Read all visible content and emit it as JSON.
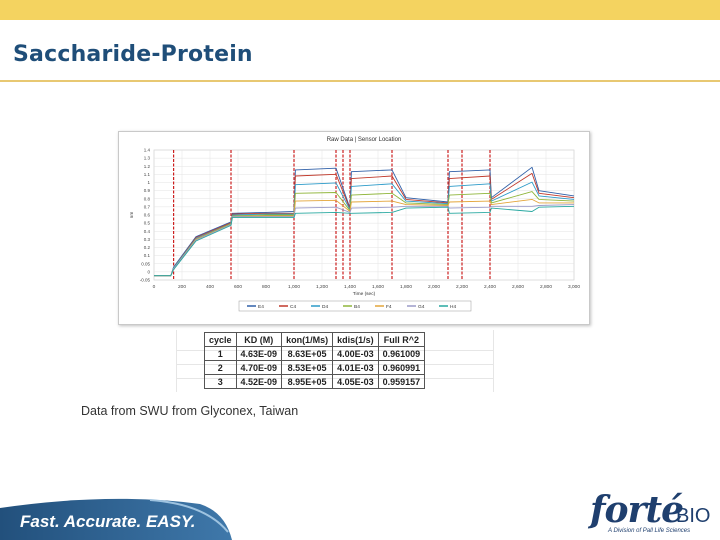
{
  "slide": {
    "title": "Saccharide-Protein",
    "credit": "Data from SWU from Glyconex, Taiwan",
    "tagline": "Fast. Accurate. EASY.",
    "logo": {
      "word": "forté",
      "suffix": "BIO",
      "subtitle": "A Division of Pall Life Sciences"
    },
    "colors": {
      "title": "#1f4e79",
      "top_bar": "#f4d360",
      "footer_band": "#2e5f8a",
      "logo": "#1f3f6e"
    }
  },
  "chart_data": {
    "type": "line",
    "title": "Raw Data | Sensor Location",
    "xlabel": "Time (sec)",
    "ylabel": "nm",
    "xlim": [
      0,
      3000
    ],
    "ylim": [
      -0.05,
      1.45
    ],
    "xticks": [
      "0",
      "200",
      "400",
      "600",
      "800",
      "1,000",
      "1,200",
      "1,400",
      "1,600",
      "1,800",
      "2,000",
      "2,200",
      "2,400",
      "2,600",
      "2,800",
      "3,000"
    ],
    "yticks": [
      "-0.05",
      "0",
      "0.05",
      "0.1",
      "0.2",
      "0.3",
      "0.4",
      "0.5",
      "0.6",
      "0.7",
      "0.8",
      "0.9",
      "1",
      "1.1",
      "1.2",
      "1.3",
      "1.4"
    ],
    "grid": true,
    "legend_position": "bottom",
    "legend": [
      "E4",
      "C4",
      "D4",
      "B4",
      "F4",
      "G4",
      "H4"
    ],
    "series_colors": [
      "#3060a8",
      "#c0392b",
      "#2c9ac8",
      "#8fb53a",
      "#e3a53a",
      "#9b9bc9",
      "#28a8a0"
    ],
    "step_markers": [
      140,
      550,
      1000,
      1300,
      1350,
      1400,
      1700,
      2100,
      2200,
      2400
    ],
    "series": [
      {
        "name": "E4",
        "x": [
          0,
          120,
          140,
          300,
          550,
          560,
          800,
          1000,
          1010,
          1300,
          1400,
          1410,
          1700,
          1800,
          2100,
          2110,
          2400,
          2410,
          2700,
          2750,
          3000
        ],
        "y": [
          0.0,
          0.0,
          0.1,
          0.45,
          0.62,
          0.72,
          0.73,
          0.74,
          1.22,
          1.24,
          0.78,
          1.2,
          1.22,
          0.9,
          0.85,
          1.2,
          1.22,
          0.9,
          1.25,
          0.98,
          0.92
        ]
      },
      {
        "name": "C4",
        "x": [
          0,
          120,
          140,
          300,
          550,
          560,
          800,
          1000,
          1010,
          1300,
          1400,
          1410,
          1700,
          1800,
          2100,
          2110,
          2400,
          2410,
          2700,
          2750,
          3000
        ],
        "y": [
          0.0,
          0.0,
          0.09,
          0.44,
          0.61,
          0.71,
          0.72,
          0.72,
          1.15,
          1.17,
          0.77,
          1.12,
          1.15,
          0.88,
          0.84,
          1.12,
          1.15,
          0.88,
          1.18,
          0.95,
          0.9
        ]
      },
      {
        "name": "D4",
        "x": [
          0,
          120,
          140,
          300,
          550,
          560,
          800,
          1000,
          1010,
          1300,
          1400,
          1410,
          1700,
          1800,
          2100,
          2110,
          2400,
          2410,
          2700,
          2750,
          3000
        ],
        "y": [
          0.0,
          0.0,
          0.09,
          0.43,
          0.6,
          0.7,
          0.71,
          0.71,
          1.05,
          1.07,
          0.76,
          1.03,
          1.06,
          0.86,
          0.83,
          1.03,
          1.06,
          0.86,
          1.08,
          0.92,
          0.88
        ]
      },
      {
        "name": "B4",
        "x": [
          0,
          120,
          140,
          300,
          550,
          560,
          800,
          1000,
          1010,
          1300,
          1400,
          1410,
          1700,
          1800,
          2100,
          2110,
          2400,
          2410,
          2700,
          2750,
          3000
        ],
        "y": [
          0.0,
          0.0,
          0.08,
          0.42,
          0.6,
          0.69,
          0.7,
          0.7,
          0.95,
          0.96,
          0.75,
          0.93,
          0.95,
          0.84,
          0.82,
          0.93,
          0.95,
          0.84,
          0.97,
          0.88,
          0.86
        ]
      },
      {
        "name": "F4",
        "x": [
          0,
          120,
          140,
          300,
          550,
          560,
          800,
          1000,
          1010,
          1300,
          1400,
          1410,
          1700,
          1800,
          2100,
          2110,
          2400,
          2410,
          2700,
          2750,
          3000
        ],
        "y": [
          0.0,
          0.0,
          0.08,
          0.42,
          0.59,
          0.68,
          0.69,
          0.69,
          0.86,
          0.87,
          0.74,
          0.85,
          0.86,
          0.82,
          0.81,
          0.85,
          0.86,
          0.82,
          0.88,
          0.84,
          0.84
        ]
      },
      {
        "name": "G4",
        "x": [
          0,
          120,
          140,
          300,
          550,
          560,
          800,
          1000,
          1010,
          1300,
          1400,
          1410,
          1700,
          1800,
          2100,
          2110,
          2400,
          2410,
          2700,
          2750,
          3000
        ],
        "y": [
          0.0,
          0.0,
          0.08,
          0.41,
          0.59,
          0.68,
          0.68,
          0.68,
          0.78,
          0.79,
          0.73,
          0.78,
          0.79,
          0.8,
          0.8,
          0.78,
          0.79,
          0.8,
          0.8,
          0.81,
          0.82
        ]
      },
      {
        "name": "H4",
        "x": [
          0,
          120,
          140,
          300,
          550,
          560,
          800,
          1000,
          1010,
          1300,
          1400,
          1410,
          1700,
          1800,
          2100,
          2110,
          2400,
          2410,
          2700,
          2750,
          3000
        ],
        "y": [
          0.0,
          0.0,
          0.07,
          0.4,
          0.58,
          0.67,
          0.67,
          0.67,
          0.72,
          0.73,
          0.72,
          0.72,
          0.73,
          0.78,
          0.79,
          0.72,
          0.73,
          0.78,
          0.74,
          0.79,
          0.8
        ]
      }
    ]
  },
  "table": {
    "headers": [
      "cycle",
      "KD (M)",
      "kon(1/Ms)",
      "kdis(1/s)",
      "Full R^2"
    ],
    "rows": [
      [
        "1",
        "4.63E-09",
        "8.63E+05",
        "4.00E-03",
        "0.961009"
      ],
      [
        "2",
        "4.70E-09",
        "8.53E+05",
        "4.01E-03",
        "0.960991"
      ],
      [
        "3",
        "4.52E-09",
        "8.95E+05",
        "4.05E-03",
        "0.959157"
      ]
    ]
  }
}
